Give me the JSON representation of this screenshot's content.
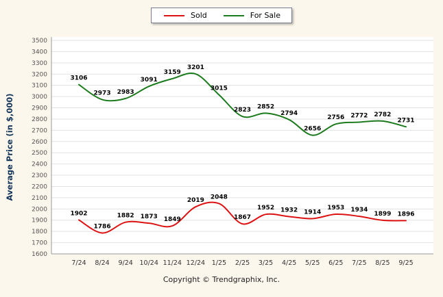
{
  "footer": {
    "copyright": "Copyright © Trendgraphix, Inc."
  },
  "chart_data": {
    "type": "line",
    "categories": [
      "7/24",
      "8/24",
      "9/24",
      "10/24",
      "11/24",
      "12/24",
      "1/25",
      "2/25",
      "3/25",
      "4/25",
      "5/25",
      "6/25",
      "7/25",
      "8/25",
      "9/25"
    ],
    "series": [
      {
        "name": "Sold",
        "color": "#dd1111",
        "values": [
          1902,
          1786,
          1882,
          1873,
          1849,
          2019,
          2048,
          1867,
          1952,
          1932,
          1914,
          1953,
          1934,
          1899,
          1896
        ]
      },
      {
        "name": "For Sale",
        "color": "#1b7a1b",
        "values": [
          3106,
          2973,
          2983,
          3091,
          3159,
          3201,
          3015,
          2823,
          2852,
          2794,
          2656,
          2756,
          2772,
          2782,
          2731
        ]
      }
    ],
    "title": "",
    "xlabel": "",
    "ylabel": "Average Price (in $,000)",
    "ylim": [
      1600,
      3500
    ],
    "ytick_step": 100,
    "grid": true,
    "legend_position": "top-center",
    "point_labels": true
  }
}
